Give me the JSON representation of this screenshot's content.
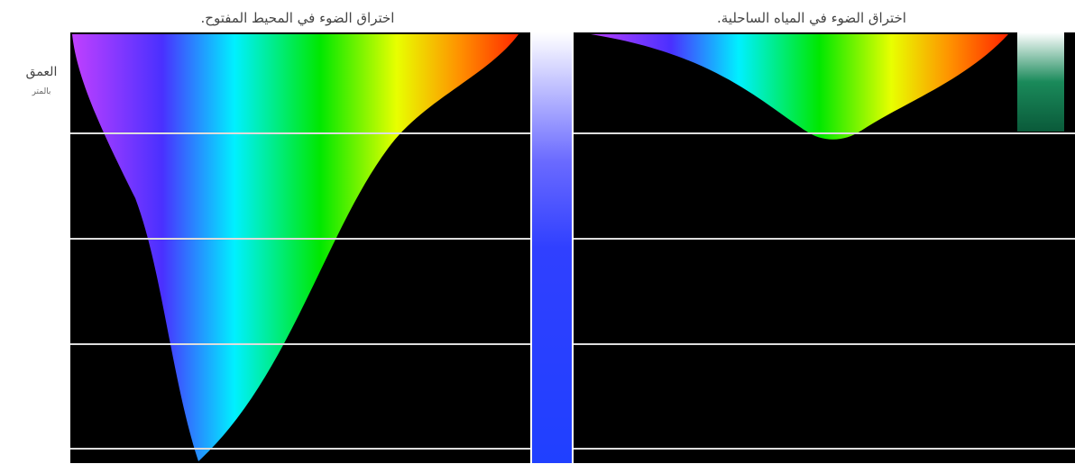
{
  "panels": {
    "open_ocean": {
      "title": "اختراق الضوء في المحيط المفتوح."
    },
    "coastal": {
      "title": "اختراق الضوء في المياه الساحلية."
    }
  },
  "axis": {
    "label": "العمق",
    "unit": "بالمتر"
  }
}
